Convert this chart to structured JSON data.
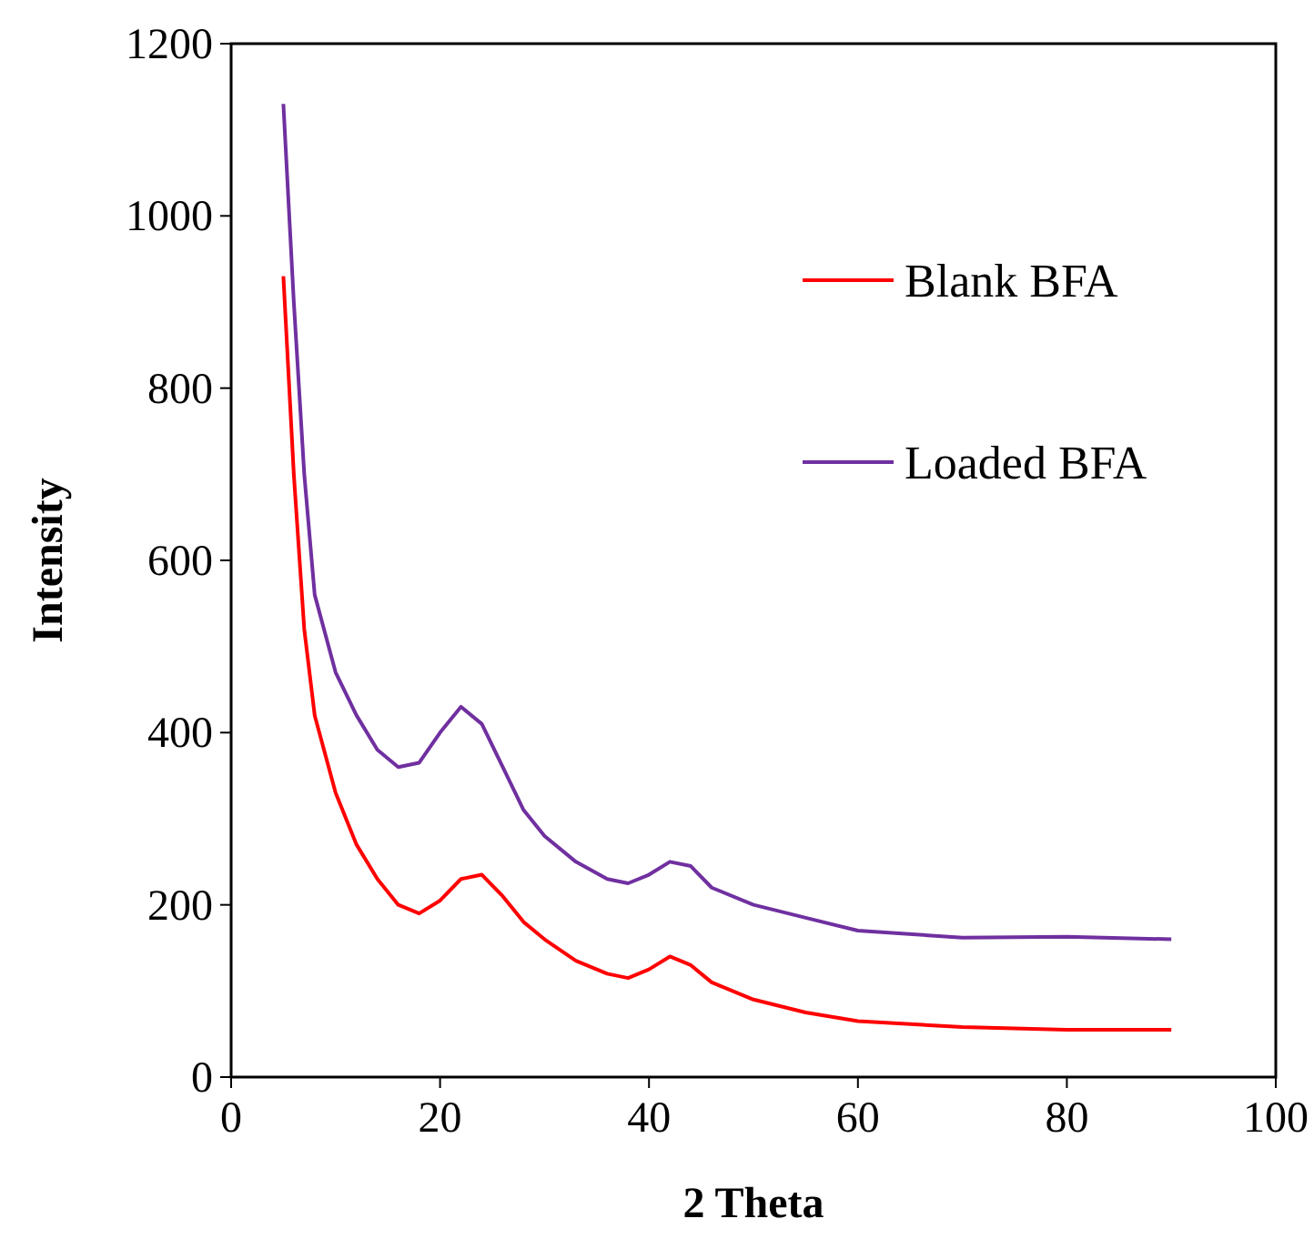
{
  "chart_data": {
    "type": "line",
    "xlabel": "2 Theta",
    "ylabel": "Intensity",
    "xlim": [
      0,
      100
    ],
    "xticks": [
      0,
      20,
      40,
      60,
      80,
      100
    ],
    "ylim": [
      0,
      1200
    ],
    "yticks": [
      0,
      200,
      400,
      600,
      800,
      1000,
      1200
    ],
    "grid": false,
    "legend": "top right",
    "marker": "none",
    "line_style": "solid",
    "series": [
      {
        "name": "Blank BFA",
        "color": "#ff0000",
        "x": [
          5,
          6,
          7,
          8,
          10,
          12,
          14,
          16,
          18,
          20,
          22,
          24,
          26,
          28,
          30,
          33,
          36,
          38,
          40,
          42,
          44,
          46,
          50,
          55,
          60,
          70,
          80,
          90
        ],
        "values": [
          930,
          700,
          520,
          420,
          330,
          270,
          230,
          200,
          190,
          205,
          230,
          235,
          210,
          180,
          160,
          135,
          120,
          115,
          125,
          140,
          130,
          110,
          90,
          75,
          65,
          58,
          55,
          55
        ]
      },
      {
        "name": "Loaded BFA",
        "color": "#7030a0",
        "x": [
          5,
          6,
          7,
          8,
          10,
          12,
          14,
          16,
          18,
          20,
          22,
          24,
          26,
          28,
          30,
          33,
          36,
          38,
          40,
          42,
          44,
          46,
          50,
          55,
          60,
          70,
          80,
          90
        ],
        "values": [
          1130,
          900,
          700,
          560,
          470,
          420,
          380,
          360,
          365,
          400,
          430,
          410,
          360,
          310,
          280,
          250,
          230,
          225,
          235,
          250,
          245,
          220,
          200,
          185,
          170,
          162,
          163,
          160
        ]
      }
    ]
  }
}
